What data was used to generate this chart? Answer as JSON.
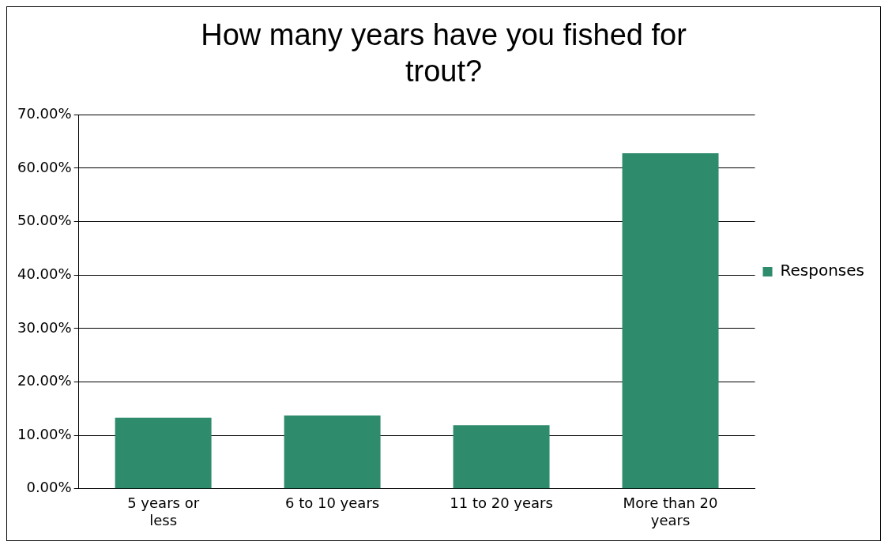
{
  "chart_data": {
    "type": "bar",
    "title": "How many years have you fished for trout?",
    "categories": [
      "5 years or less",
      "6 to 10 years",
      "11 to 20 years",
      "More than 20 years"
    ],
    "series": [
      {
        "name": "Responses",
        "color": "#2e8b6b",
        "values": [
          13.3,
          13.7,
          11.9,
          62.8
        ]
      }
    ],
    "ylim": [
      0,
      70
    ],
    "yticks": [
      {
        "value": 0,
        "label": "0.00%"
      },
      {
        "value": 10,
        "label": "10.00%"
      },
      {
        "value": 20,
        "label": "20.00%"
      },
      {
        "value": 30,
        "label": "30.00%"
      },
      {
        "value": 40,
        "label": "40.00%"
      },
      {
        "value": 50,
        "label": "50.00%"
      },
      {
        "value": 60,
        "label": "60.00%"
      },
      {
        "value": 70,
        "label": "70.00%"
      }
    ],
    "grid": "y",
    "legend": "right"
  }
}
